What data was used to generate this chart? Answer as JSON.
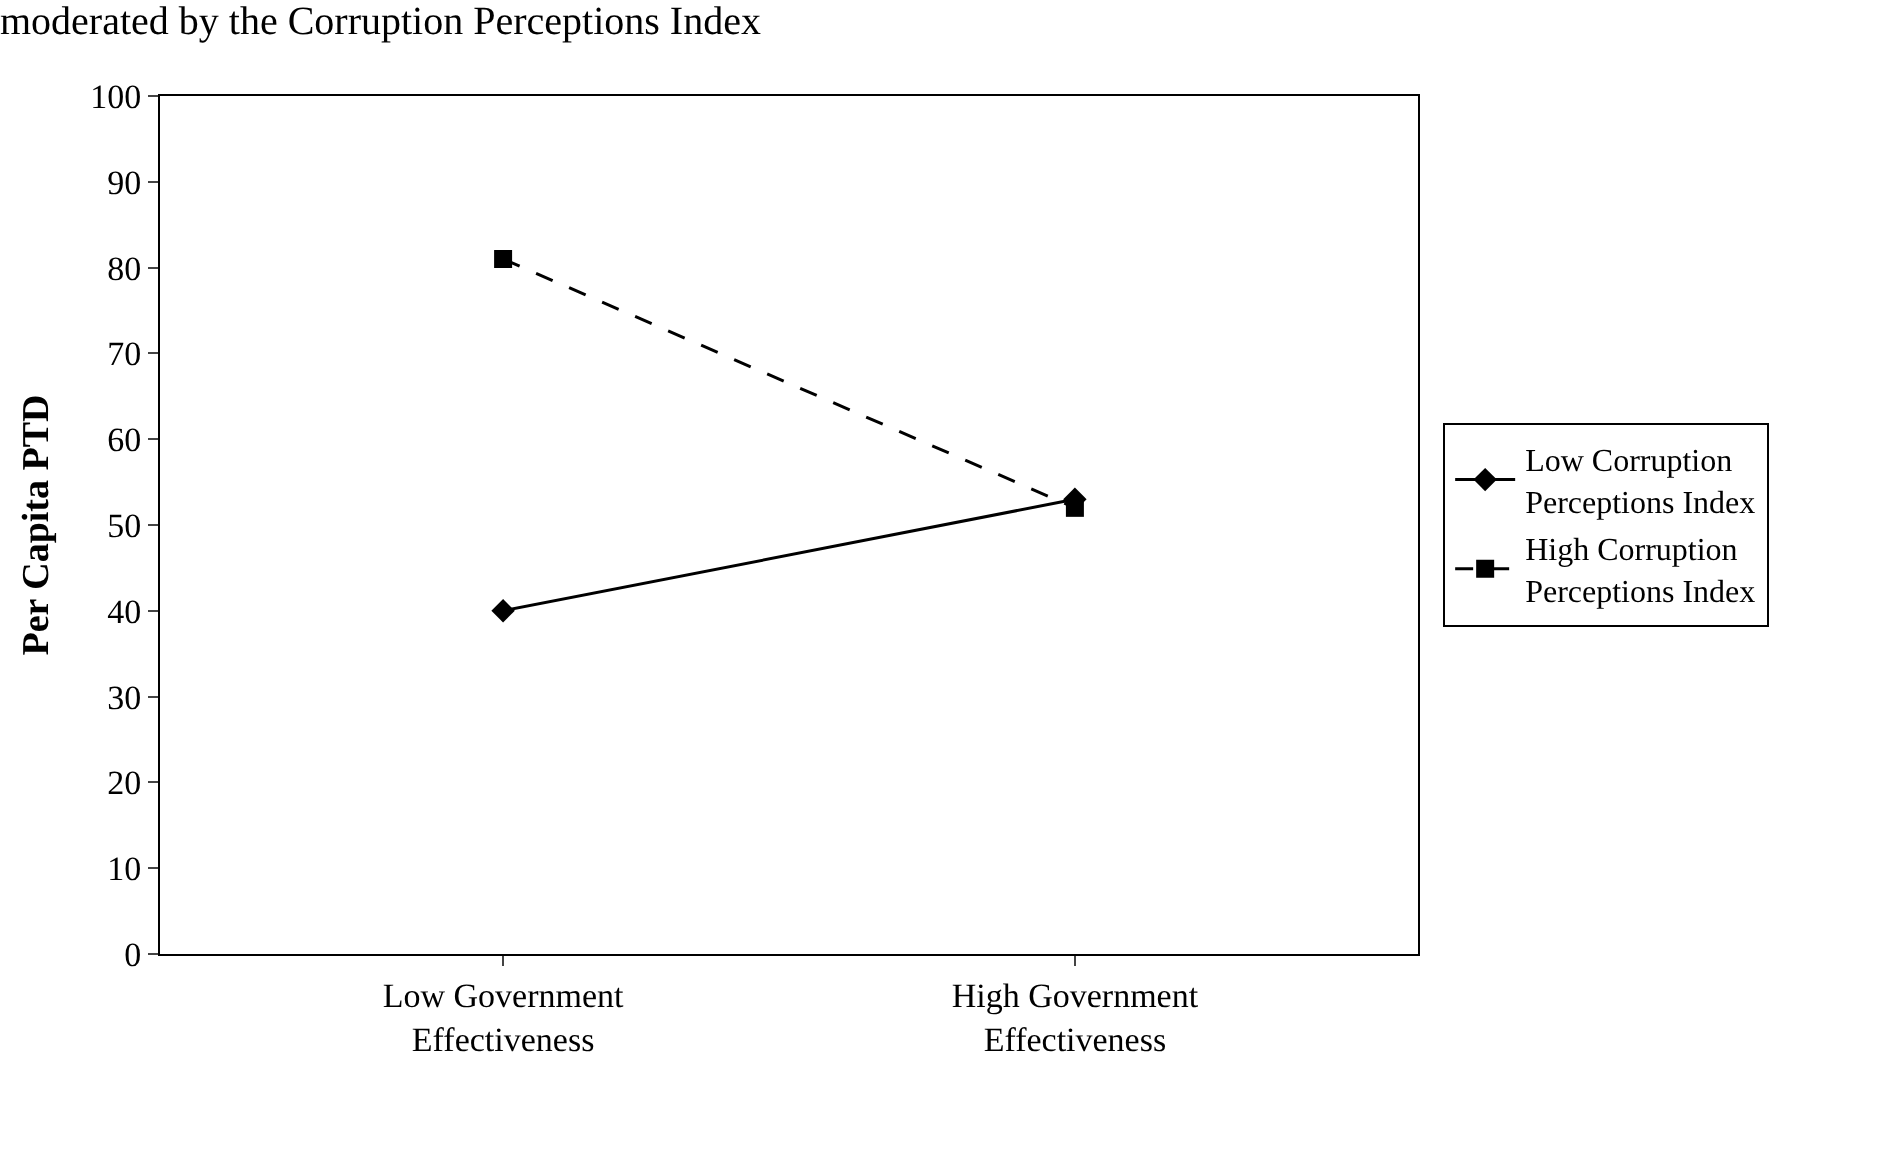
{
  "chart_data": {
    "type": "line",
    "title": "moderated by the Corruption Perceptions Index",
    "ylabel": "Per Capita PTD",
    "categories": [
      "Low Government Effectiveness",
      "High Government Effectiveness"
    ],
    "series": [
      {
        "name": "Low Corruption Perceptions Index",
        "color": "#000000",
        "values": [
          40,
          53
        ],
        "marker": "diamond",
        "line_style": "solid"
      },
      {
        "name": "High Corruption Perceptions Index",
        "color": "#000000",
        "values": [
          81,
          52
        ],
        "marker": "square",
        "line_style": "dashed"
      }
    ],
    "ylim": [
      0,
      100
    ],
    "yticks": [
      0,
      10,
      20,
      30,
      40,
      50,
      60,
      70,
      80,
      90,
      100
    ],
    "grid": false,
    "legend": "right"
  }
}
